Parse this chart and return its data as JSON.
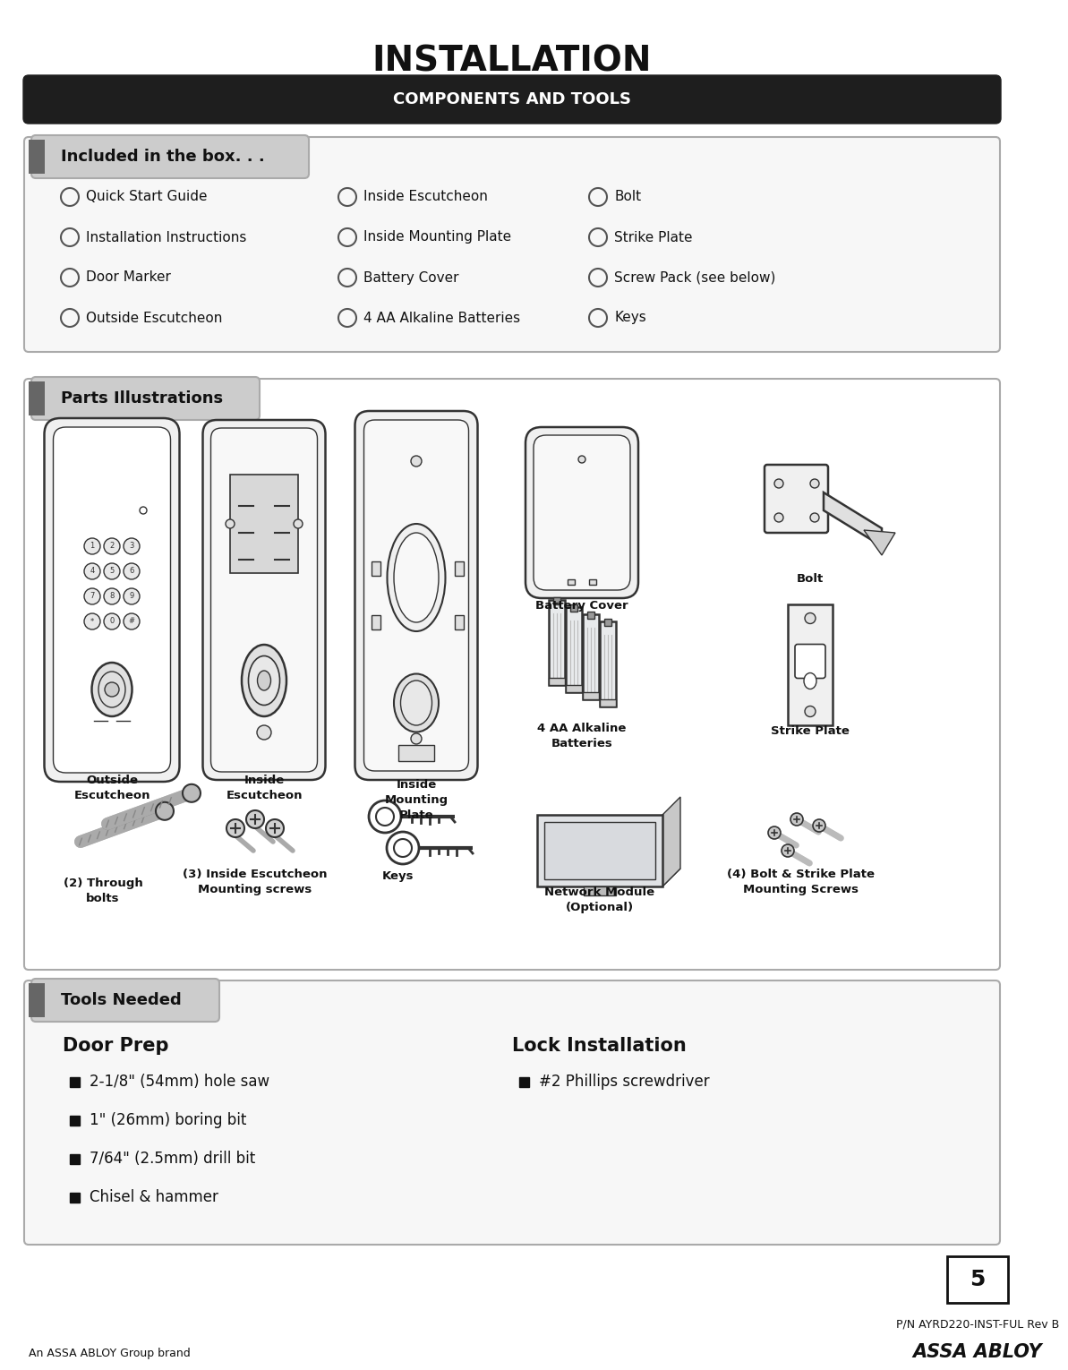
{
  "title": "INSTALLATION",
  "section_banner": "COMPONENTS AND TOOLS",
  "section_banner_bg": "#1e1e1e",
  "section_banner_color": "#ffffff",
  "box1_title": "Included in the box. . .",
  "box1_col1": [
    "Quick Start Guide",
    "Installation Instructions",
    "Door Marker",
    "Outside Escutcheon"
  ],
  "box1_col2": [
    "Inside Escutcheon",
    "Inside Mounting Plate",
    "Battery Cover",
    "4 AA Alkaline Batteries"
  ],
  "box1_col3": [
    "Bolt",
    "Strike Plate",
    "Screw Pack (see below)",
    "Keys"
  ],
  "box2_title": "Parts Illustrations",
  "box3_title": "Tools Needed",
  "door_prep_title": "Door Prep",
  "door_prep_items": [
    "2-1/8\" (54mm) hole saw",
    "1\" (26mm) boring bit",
    "7/64\" (2.5mm) drill bit",
    "Chisel & hammer"
  ],
  "lock_install_title": "Lock Installation",
  "lock_install_items": [
    "#2 Phillips screwdriver"
  ],
  "page_num": "5",
  "part_num": "P/N AYRD220-INST-FUL Rev B",
  "brand_sub": "An ASSA ABLOY Group brand",
  "brand": "ASSA ABLOY",
  "bg_color": "#ffffff",
  "box_bg": "#f5f5f5",
  "box_border": "#999999",
  "tab_bg": "#cccccc",
  "tab_border": "#999999",
  "dark_tab_bg": "#555555"
}
